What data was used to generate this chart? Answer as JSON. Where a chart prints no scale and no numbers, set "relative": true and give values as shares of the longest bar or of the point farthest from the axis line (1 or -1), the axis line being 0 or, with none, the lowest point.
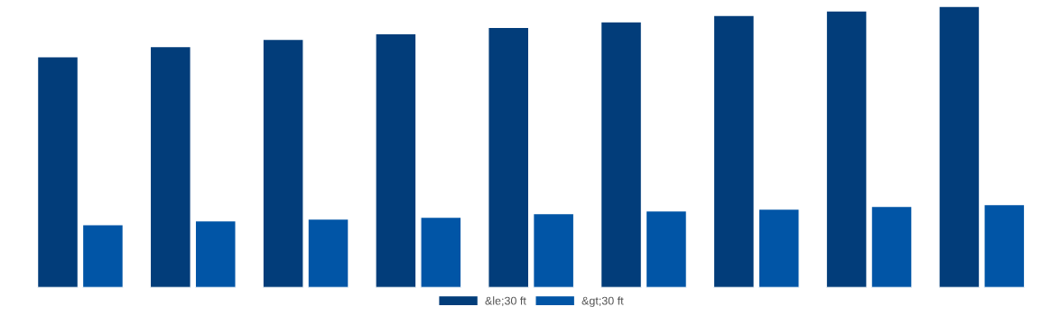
{
  "chart_data": {
    "type": "bar",
    "relative": true,
    "categories": [
      null,
      null,
      null,
      null,
      null,
      null,
      null,
      null,
      null
    ],
    "series": [
      {
        "name": "&le;30 ft",
        "color": "#023d7a",
        "values": [
          0.821,
          0.857,
          0.883,
          0.903,
          0.925,
          0.945,
          0.968,
          0.984,
          1
        ]
      },
      {
        "name": "&gt;30 ft",
        "color": "#0155a6",
        "values": [
          0.224,
          0.237,
          0.244,
          0.25,
          0.263,
          0.273,
          0.279,
          0.289,
          0.295
        ]
      }
    ],
    "grid": false,
    "legend": "bottom"
  }
}
